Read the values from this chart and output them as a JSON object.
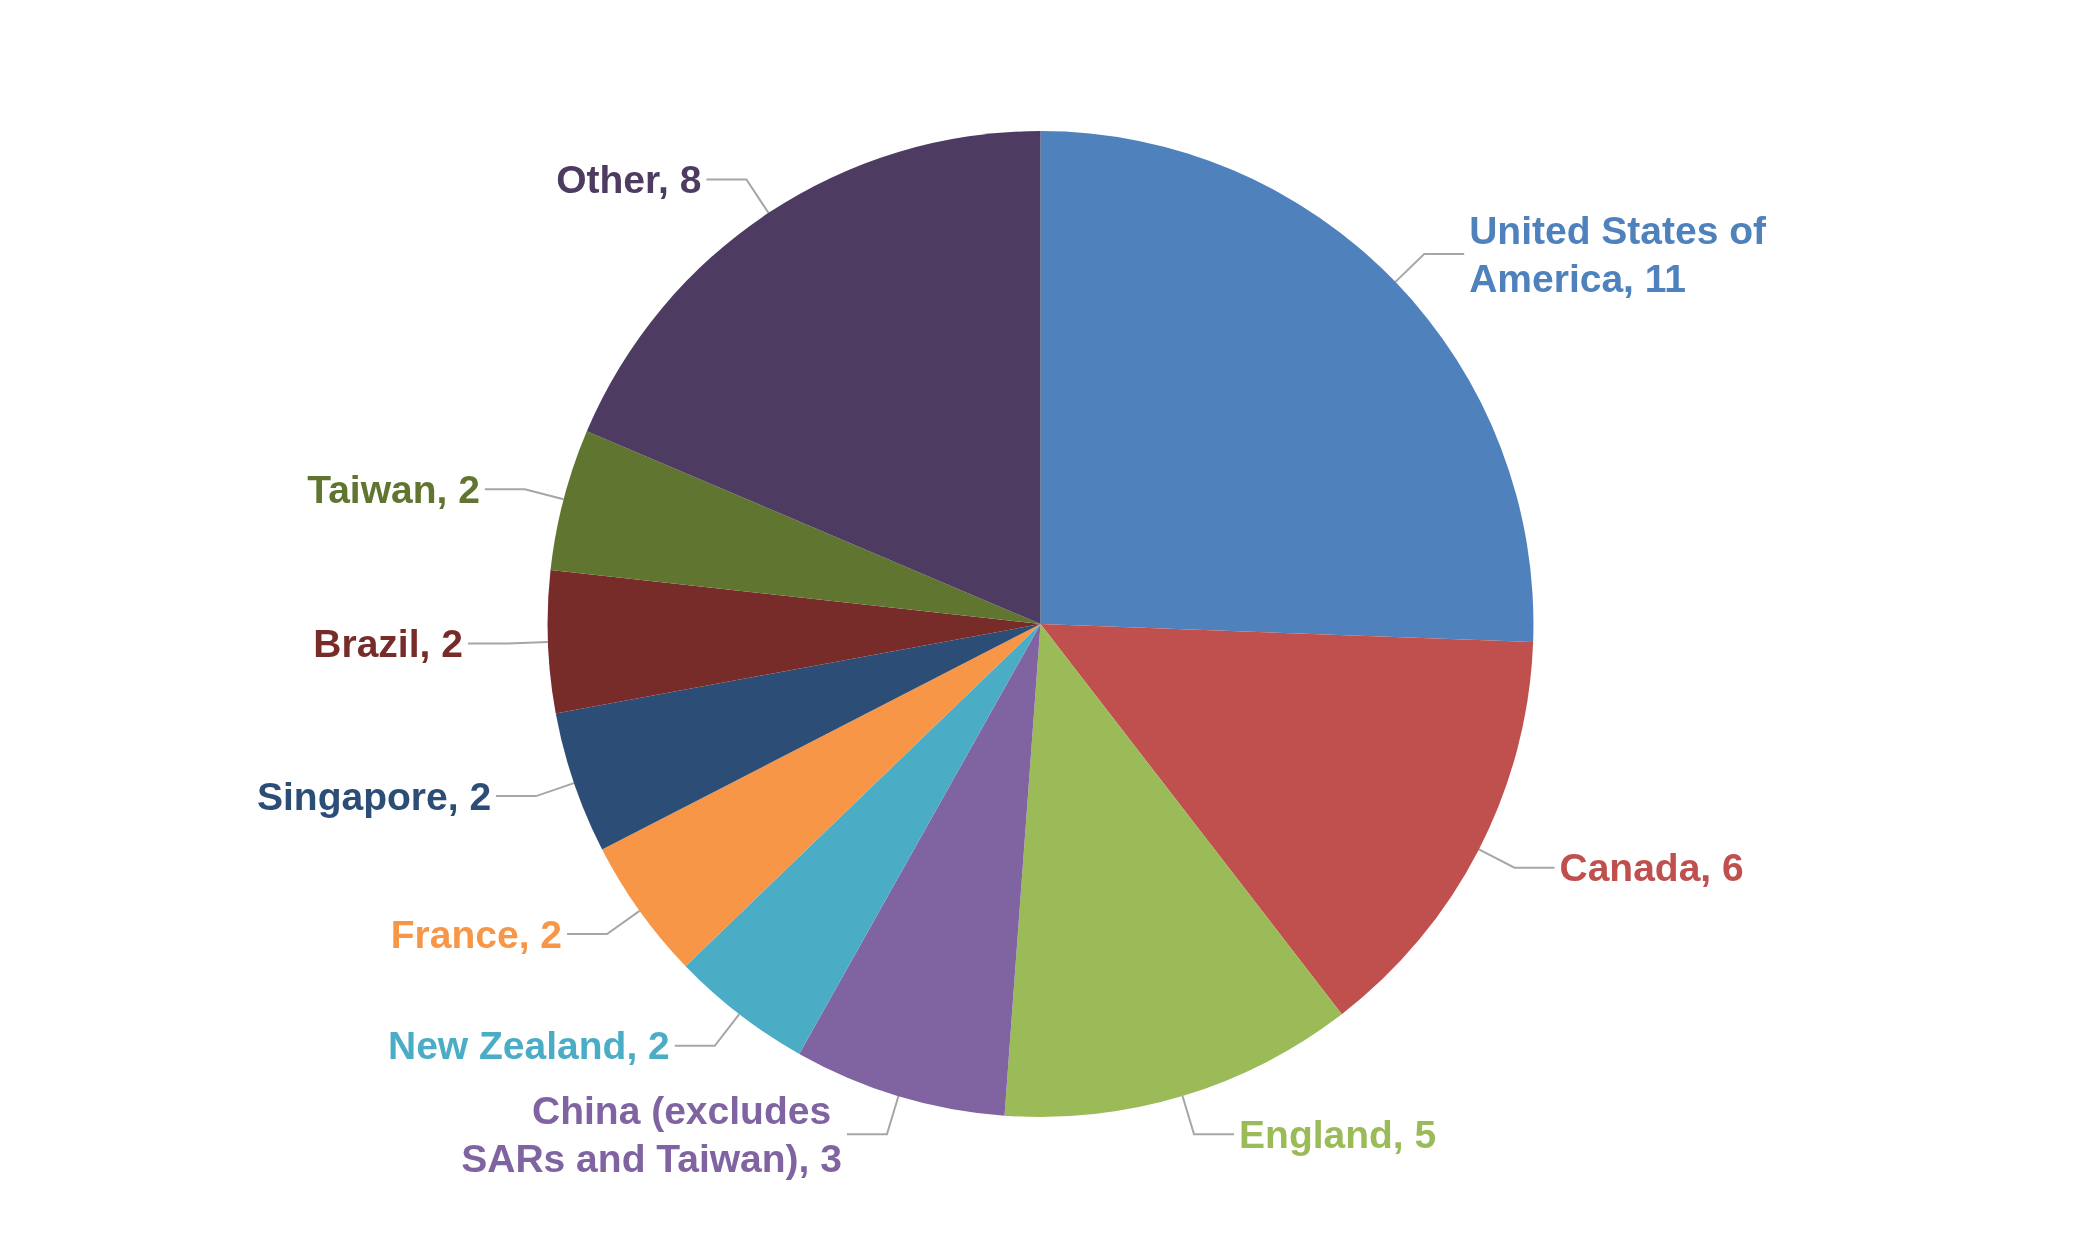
{
  "chart_data": {
    "type": "pie",
    "categories": [
      "United States of America",
      "Canada",
      "England",
      "China (excludes SARs and Taiwan)",
      "New Zealand",
      "France",
      "Singapore",
      "Brazil",
      "Taiwan",
      "Other"
    ],
    "values": [
      11,
      6,
      5,
      3,
      2,
      2,
      2,
      2,
      2,
      8
    ],
    "colors": [
      "#4f81bd",
      "#c0504d",
      "#9bbb59",
      "#8064a2",
      "#4bacc6",
      "#f79646",
      "#2c4d75",
      "#772c2a",
      "#5f7530",
      "#4d3b62"
    ],
    "value_labels": [
      ", 11",
      ", 6",
      ", 5",
      ", 3",
      ", 2",
      ", 2",
      ", 2",
      ", 2",
      ", 2",
      ", 8"
    ],
    "legend": false
  }
}
